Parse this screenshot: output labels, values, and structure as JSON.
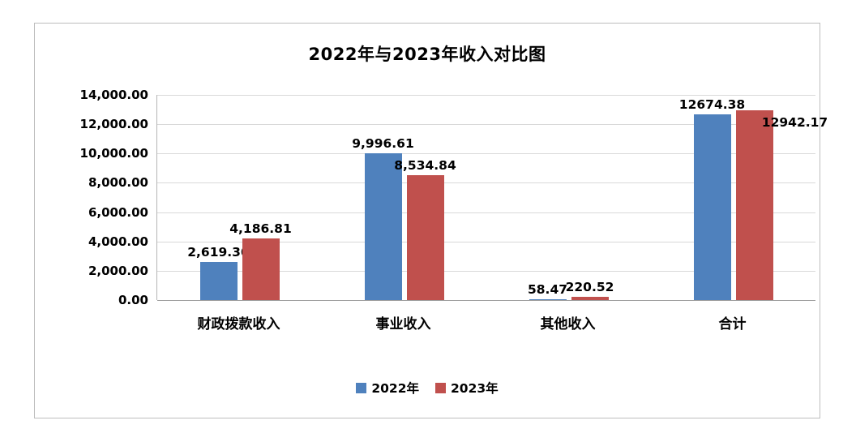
{
  "chart_data": {
    "type": "bar",
    "title": "2022年与2023年收入对比图",
    "categories": [
      "财政拨款收入",
      "事业收入",
      "其他收入",
      "合计"
    ],
    "series": [
      {
        "name": "2022年",
        "color": "#4F81BD",
        "values": [
          2619.3,
          9996.61,
          58.47,
          12674.38
        ],
        "labels": [
          "2,619.30",
          "9,996.61",
          "58.47",
          "12674.38"
        ]
      },
      {
        "name": "2023年",
        "color": "#C0504D",
        "values": [
          4186.81,
          8534.84,
          220.52,
          12942.17
        ],
        "labels": [
          "4,186.81",
          "8,534.84",
          "220.52",
          "12942.17"
        ]
      }
    ],
    "ylim": [
      0,
      14000
    ],
    "yticks": [
      {
        "value": 0,
        "label": "0.00"
      },
      {
        "value": 2000,
        "label": "2,000.00"
      },
      {
        "value": 4000,
        "label": "4,000.00"
      },
      {
        "value": 6000,
        "label": "6,000.00"
      },
      {
        "value": 8000,
        "label": "8,000.00"
      },
      {
        "value": 10000,
        "label": "10,000.00"
      },
      {
        "value": 12000,
        "label": "12,000.00"
      },
      {
        "value": 14000,
        "label": "14,000.00"
      }
    ],
    "grid": true,
    "legend_position": "bottom"
  }
}
